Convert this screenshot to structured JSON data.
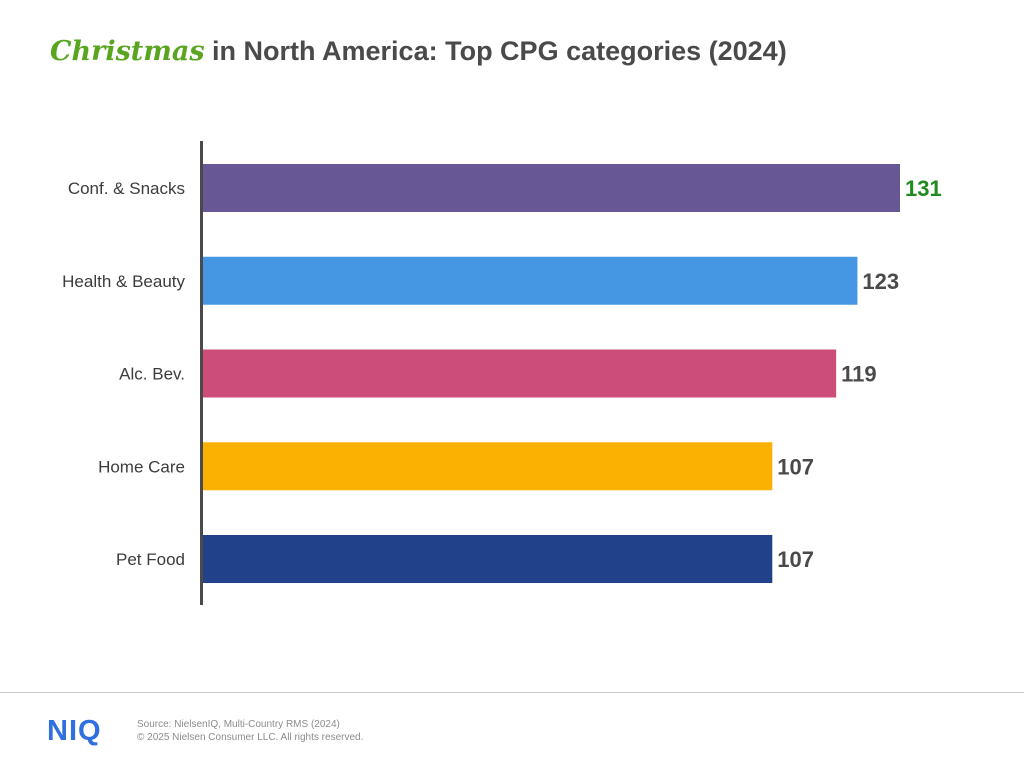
{
  "title": {
    "highlight": "Christmas",
    "rest": " in North America: Top CPG categories (2024)"
  },
  "colors": {
    "highlight": "#5aa51f",
    "top_value_label": "#1f8a1f",
    "value_label": "#4a4a4a",
    "axis": "#4a4a4a",
    "logo": "#2f6fe0"
  },
  "chart_data": {
    "type": "bar",
    "orientation": "horizontal",
    "categories": [
      "Conf. & Snacks",
      "Health & Beauty",
      "Alc. Bev.",
      "Home Care",
      "Pet Food"
    ],
    "values": [
      131,
      123,
      119,
      107,
      107
    ],
    "bar_colors": [
      "#675895",
      "#4597e3",
      "#cc4d7a",
      "#fbb102",
      "#21418a"
    ],
    "data_labels": [
      "131",
      "123",
      "119",
      "107",
      "107"
    ],
    "title": "Christmas in North America: Top CPG categories (2024)",
    "xlabel": "",
    "ylabel": "",
    "xlim": [
      0,
      131
    ],
    "grid": false,
    "legend": "none"
  },
  "footer": {
    "logo_text": "NIQ",
    "source": "Source: NielsenIQ, Multi-Country RMS (2024)",
    "copyright": "© 2025 Nielsen Consumer LLC. All rights reserved."
  }
}
